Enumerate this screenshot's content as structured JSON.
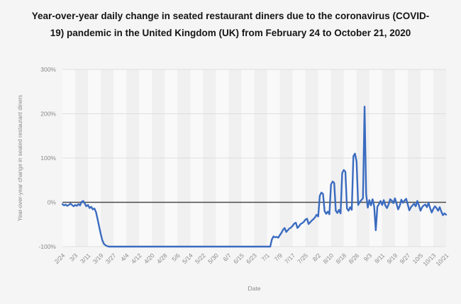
{
  "title": "Year-over-year daily change in seated restaurant diners due to the coronavirus (COVID-19) pandemic in the United Kingdom (UK) from February 24 to October 21, 2020",
  "colors": {
    "line": "#3a6bbf",
    "grid": "#dedede",
    "zero_line": "#4a4a4a",
    "tick_text": "#8a8a8a",
    "background": "#f5f5f5",
    "band_light": "#f9f9fa",
    "band_dark": "#f0f0f1"
  },
  "chart_data": {
    "type": "line",
    "title": "Year-over-year daily change in seated restaurant diners due to the coronavirus (COVID-19) pandemic in the United Kingdom (UK) from February 24 to October 21, 2020",
    "xlabel": "Date",
    "ylabel": "Year-over-year change in seated restaurant diners",
    "ylim": [
      -100,
      300
    ],
    "grid": true,
    "legend": false,
    "zero_line": true,
    "y_tick_labels": [
      "300%",
      "200%",
      "100%",
      "0%",
      "-100%"
    ],
    "y_tick_values": [
      300,
      200,
      100,
      0,
      -100
    ],
    "x_tick_labels": [
      "2/24",
      "3/3",
      "3/11",
      "3/19",
      "3/27",
      "4/4",
      "4/12",
      "4/20",
      "4/28",
      "5/6",
      "5/14",
      "5/22",
      "5/30",
      "6/7",
      "6/15",
      "6/23",
      "7/1",
      "7/9",
      "7/17",
      "7/25",
      "8/2",
      "8/10",
      "8/18",
      "8/26",
      "9/3",
      "9/11",
      "9/19",
      "9/27",
      "10/5",
      "10/13",
      "10/21"
    ],
    "x_tick_step_days": 8,
    "series": [
      {
        "name": "Year-over-year change in seated restaurant diners (%)",
        "start_label": "2/24",
        "end_label": "10/21",
        "values": [
          -4,
          -7,
          -5,
          -8,
          -6,
          -3,
          -6,
          -9,
          -6,
          -8,
          -4,
          -7,
          1,
          3,
          -3,
          -9,
          -6,
          -13,
          -10,
          -16,
          -14,
          -22,
          -38,
          -55,
          -72,
          -86,
          -94,
          -97,
          -99,
          -100,
          -100,
          -100,
          -100,
          -100,
          -100,
          -100,
          -100,
          -100,
          -100,
          -100,
          -100,
          -100,
          -100,
          -100,
          -100,
          -100,
          -100,
          -100,
          -100,
          -100,
          -100,
          -100,
          -100,
          -100,
          -100,
          -100,
          -100,
          -100,
          -100,
          -100,
          -100,
          -100,
          -100,
          -100,
          -100,
          -100,
          -100,
          -100,
          -100,
          -100,
          -100,
          -100,
          -100,
          -100,
          -100,
          -100,
          -100,
          -100,
          -100,
          -100,
          -100,
          -100,
          -100,
          -100,
          -100,
          -100,
          -100,
          -100,
          -100,
          -100,
          -100,
          -100,
          -100,
          -100,
          -100,
          -100,
          -100,
          -100,
          -100,
          -100,
          -100,
          -100,
          -100,
          -100,
          -100,
          -100,
          -100,
          -100,
          -100,
          -100,
          -100,
          -100,
          -100,
          -100,
          -100,
          -100,
          -100,
          -100,
          -100,
          -100,
          -100,
          -100,
          -100,
          -100,
          -100,
          -100,
          -100,
          -100,
          -100,
          -100,
          -100,
          -84,
          -77,
          -79,
          -78,
          -80,
          -74,
          -69,
          -62,
          -58,
          -67,
          -63,
          -59,
          -57,
          -53,
          -48,
          -46,
          -58,
          -54,
          -49,
          -47,
          -44,
          -39,
          -37,
          -49,
          -45,
          -41,
          -38,
          -34,
          -28,
          -32,
          15,
          22,
          19,
          -20,
          -26,
          -21,
          -27,
          40,
          47,
          44,
          -19,
          -24,
          -17,
          -25,
          66,
          73,
          69,
          -14,
          -19,
          -11,
          -17,
          104,
          110,
          92,
          -6,
          1,
          5,
          9,
          216,
          18,
          -12,
          5,
          -7,
          7,
          -9,
          -63,
          -10,
          -4,
          3,
          -6,
          5,
          -7,
          -13,
          -5,
          7,
          4,
          -2,
          9,
          -3,
          -16,
          -8,
          6,
          -1,
          4,
          8,
          -5,
          -18,
          -11,
          -7,
          -3,
          -9,
          3,
          -7,
          -19,
          -11,
          -7,
          -5,
          -11,
          -1,
          -13,
          -23,
          -15,
          -9,
          -13,
          -19,
          -11,
          -21,
          -29,
          -25,
          -28
        ]
      }
    ]
  }
}
